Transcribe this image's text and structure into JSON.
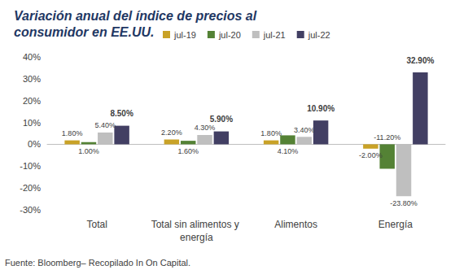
{
  "chart_data": {
    "type": "bar",
    "title": "Variación anual del índice de precios al consumidor en EE.UU.",
    "source": "Fuente: Bloomberg– Recopilado In On Capital.",
    "categories": [
      "Total",
      "Total sin alimentos y energía",
      "Alimentos",
      "Energía"
    ],
    "series": [
      {
        "name": "jul-19",
        "color": "#C9A227",
        "values": [
          1.8,
          2.2,
          1.8,
          -2.0
        ],
        "value_labels": [
          "1.80%",
          "2.20%",
          "1.80%",
          "-2.00%"
        ]
      },
      {
        "name": "jul-20",
        "color": "#548235",
        "values": [
          1.0,
          1.6,
          4.1,
          -11.2
        ],
        "value_labels": [
          "1.00%",
          "1.60%",
          "4.10%",
          "-11.20%"
        ]
      },
      {
        "name": "jul-21",
        "color": "#BFBFBF",
        "values": [
          5.4,
          4.3,
          3.4,
          -23.8
        ],
        "value_labels": [
          "5.40%",
          "4.30%",
          "3.40%",
          "-23.80%"
        ]
      },
      {
        "name": "jul-22",
        "color": "#423F63",
        "values": [
          8.5,
          5.9,
          10.9,
          32.9
        ],
        "value_labels": [
          "8.50%",
          "5.90%",
          "10.90%",
          "32.90%"
        ]
      }
    ],
    "ylim": [
      -30,
      40
    ],
    "yticks": [
      {
        "value": -30,
        "label": "-30%"
      },
      {
        "value": -20,
        "label": "-20%"
      },
      {
        "value": -10,
        "label": "-10%"
      },
      {
        "value": 0,
        "label": "0%"
      },
      {
        "value": 10,
        "label": "10%"
      },
      {
        "value": 20,
        "label": "20%"
      },
      {
        "value": 30,
        "label": "30%"
      },
      {
        "value": 40,
        "label": "40%"
      }
    ],
    "grid": false,
    "legend": "top",
    "data_labels": true
  }
}
